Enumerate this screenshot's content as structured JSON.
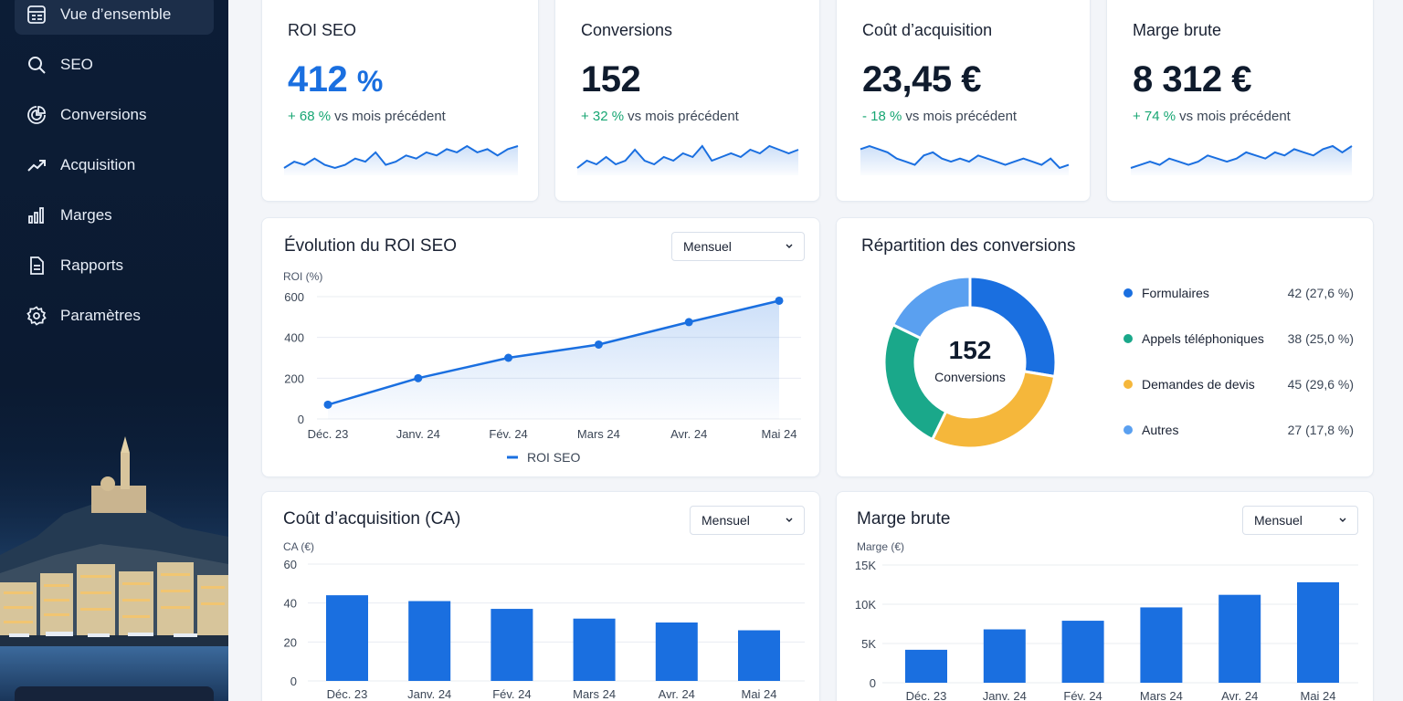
{
  "sidebar": {
    "items": [
      {
        "label": "Vue d’ensemble",
        "icon": "dashboard-icon",
        "active": true
      },
      {
        "label": "SEO",
        "icon": "search-icon"
      },
      {
        "label": "Conversions",
        "icon": "pie-chart-icon"
      },
      {
        "label": "Acquisition",
        "icon": "trending-up-icon"
      },
      {
        "label": "Marges",
        "icon": "bar-chart-icon"
      },
      {
        "label": "Rapports",
        "icon": "document-icon"
      },
      {
        "label": "Paramètres",
        "icon": "gear-icon"
      }
    ]
  },
  "kpis": [
    {
      "title": "ROI SEO",
      "value": "412",
      "unit": "%",
      "delta": "+ 68 %",
      "delta_text": "vs mois précédent",
      "delta_color": "#17a673"
    },
    {
      "title": "Conversions",
      "value": "152",
      "delta": "+ 32 %",
      "delta_text": "vs mois précédent",
      "delta_color": "#17a673"
    },
    {
      "title": "Coût d’acquisition",
      "value": "23,45 €",
      "delta": "- 18 %",
      "delta_text": "vs mois précédent",
      "delta_color": "#17a673"
    },
    {
      "title": "Marge brute",
      "value": "8 312 €",
      "delta": "+ 74 %",
      "delta_text": "vs mois précédent",
      "delta_color": "#17a673"
    }
  ],
  "colors": {
    "accent": "#1a6fe0",
    "positive": "#17a673",
    "green_slice": "#1aa88a",
    "yellow_slice": "#f5b73b",
    "light_blue_slice": "#5aa0f0"
  },
  "roi_panel": {
    "title": "Évolution du ROI SEO",
    "select": "Mensuel"
  },
  "conv_panel": {
    "title": "Répartition des conversions",
    "center_value": "152",
    "center_label": "Conversions"
  },
  "ca_panel": {
    "title": "Coût d’acquisition (CA)",
    "select": "Mensuel"
  },
  "marge_panel": {
    "title": "Marge brute",
    "select": "Mensuel"
  },
  "chart_data": [
    {
      "id": "roi",
      "type": "line",
      "title": "Évolution du ROI SEO",
      "ylabel": "ROI (%)",
      "categories": [
        "Déc. 23",
        "Janv. 24",
        "Fév. 24",
        "Mars 24",
        "Avr. 24",
        "Mai 24"
      ],
      "series": [
        {
          "name": "ROI SEO",
          "values": [
            70,
            200,
            300,
            365,
            475,
            580
          ]
        }
      ],
      "yticks": [
        "0",
        "200",
        "400",
        "600"
      ],
      "ylim": [
        0,
        600
      ],
      "legend": "bottom",
      "grid": true
    },
    {
      "id": "conversions",
      "type": "pie",
      "title": "Répartition des conversions",
      "categories": [
        "Formulaires",
        "Appels téléphoniques",
        "Demandes de devis",
        "Autres"
      ],
      "values": [
        42,
        38,
        45,
        27
      ],
      "labels": [
        "42 (27,6 %)",
        "38 (25,0 %)",
        "45 (29,6 %)",
        "27 (17,8 %)"
      ],
      "legend": "right"
    },
    {
      "id": "ca",
      "type": "bar",
      "title": "Coût d’acquisition (CA)",
      "ylabel": "CA (€)",
      "categories": [
        "Déc. 23",
        "Janv. 24",
        "Fév. 24",
        "Mars 24",
        "Avr. 24",
        "Mai 24"
      ],
      "values": [
        44,
        41,
        37,
        32,
        30,
        26
      ],
      "yticks": [
        "0",
        "20",
        "40",
        "60"
      ],
      "ylim": [
        0,
        60
      ],
      "grid": true
    },
    {
      "id": "marge",
      "type": "bar",
      "title": "Marge brute",
      "ylabel": "Marge (€)",
      "categories": [
        "Déc. 23",
        "Janv. 24",
        "Fév. 24",
        "Mars 24",
        "Avr. 24",
        "Mai 24"
      ],
      "values": [
        4200,
        6800,
        7900,
        9600,
        11200,
        12800
      ],
      "yticks": [
        "0",
        "5K",
        "10K",
        "15K"
      ],
      "ylim": [
        0,
        15000
      ],
      "grid": true
    }
  ],
  "sparklines": [
    [
      3,
      5,
      4,
      6,
      4,
      3,
      4,
      6,
      5,
      8,
      4,
      5,
      7,
      6,
      8,
      7,
      9,
      8,
      10,
      8,
      9,
      7,
      9,
      10
    ],
    [
      4,
      6,
      5,
      7,
      5,
      6,
      9,
      6,
      5,
      7,
      6,
      8,
      7,
      10,
      6,
      7,
      8,
      7,
      9,
      8,
      10,
      9,
      8,
      9
    ],
    [
      9,
      10,
      9,
      8,
      6,
      5,
      4,
      7,
      8,
      6,
      5,
      6,
      5,
      7,
      6,
      5,
      4,
      5,
      6,
      5,
      4,
      6,
      3,
      4
    ],
    [
      3,
      4,
      5,
      4,
      6,
      5,
      4,
      5,
      7,
      6,
      5,
      6,
      8,
      7,
      6,
      8,
      7,
      9,
      8,
      7,
      9,
      10,
      8,
      10
    ]
  ]
}
